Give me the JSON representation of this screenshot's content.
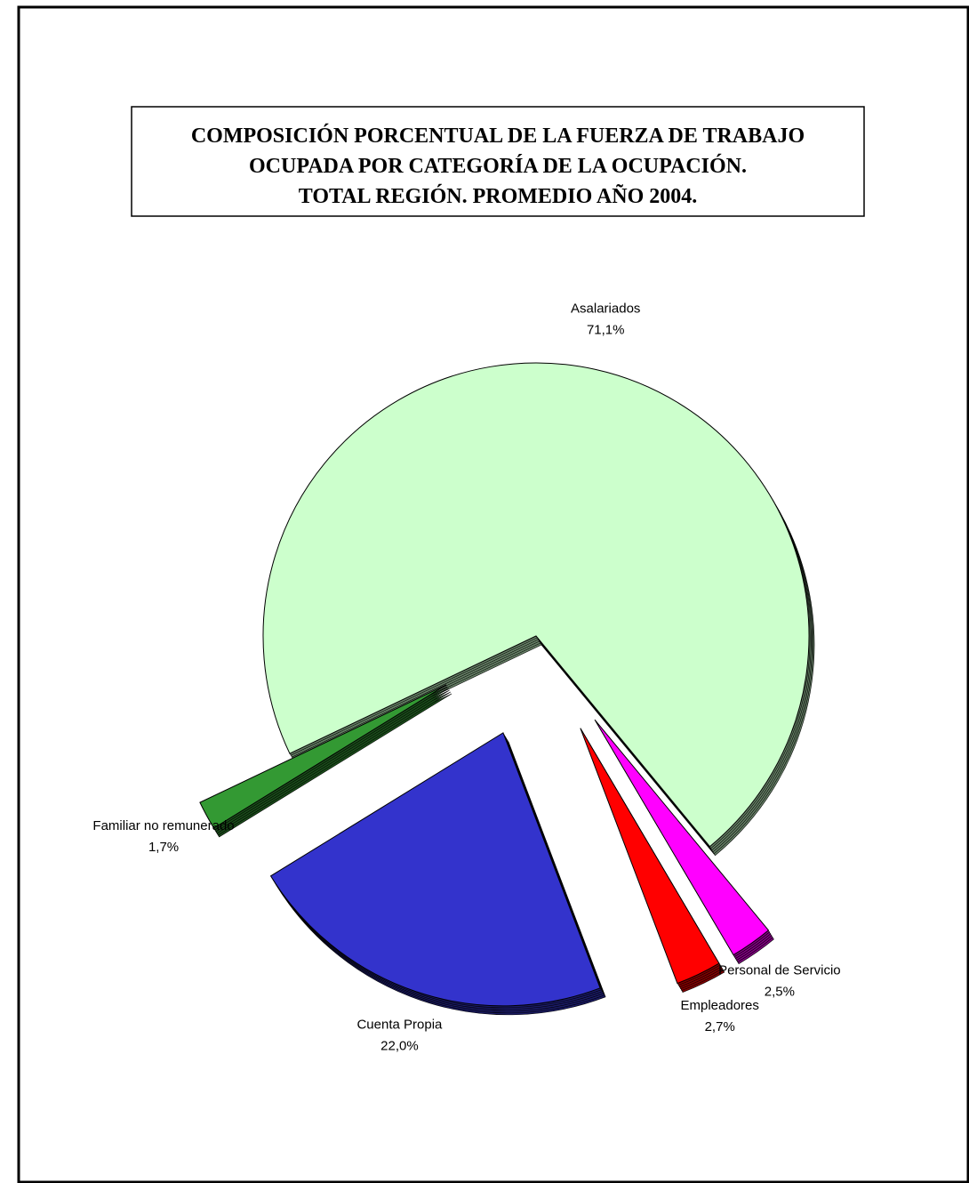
{
  "chart_data": {
    "type": "pie",
    "title": [
      "COMPOSICIÓN PORCENTUAL DE LA FUERZA DE TRABAJO",
      "OCUPADA POR CATEGORÍA DE LA OCUPACIÓN.",
      "TOTAL REGIÓN.  PROMEDIO AÑO 2004."
    ],
    "categories": [
      "Asalariados",
      "Personal de Servicio",
      "Empleadores",
      "Cuenta Propia",
      "Familiar no remunerado"
    ],
    "values": [
      71.1,
      2.5,
      2.7,
      22.0,
      1.7
    ],
    "value_labels": [
      "71,1%",
      "2,5%",
      "2,7%",
      "22,0%",
      "1,7%"
    ],
    "colors": [
      "#ccffcc",
      "#ff00ff",
      "#ff0000",
      "#3333cc",
      "#339933"
    ]
  }
}
